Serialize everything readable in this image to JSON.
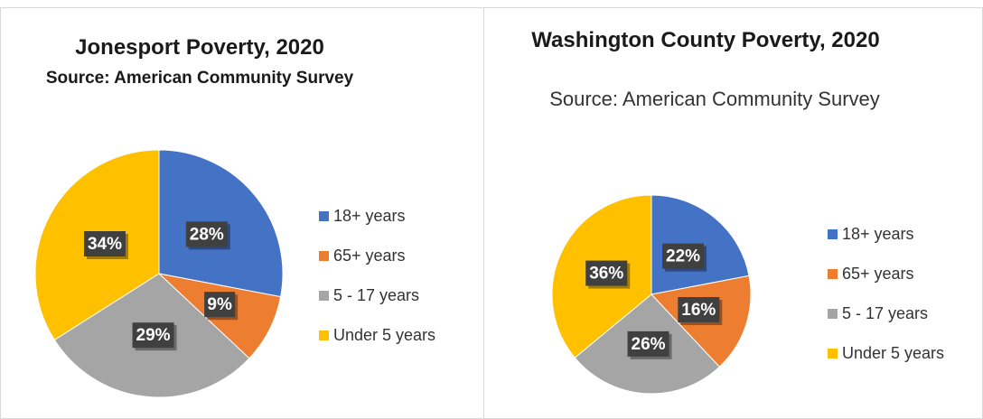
{
  "chart_data": [
    {
      "type": "pie",
      "title": "Jonesport Poverty, 2020",
      "subtitle": "Source: American Community Survey",
      "categories": [
        "18+ years",
        "65+ years",
        "5 - 17 years",
        "Under 5 years"
      ],
      "values": [
        28,
        9,
        29,
        34
      ],
      "value_labels": [
        "28%",
        "9%",
        "29%",
        "34%"
      ],
      "colors": [
        "#4472c4",
        "#ed7d31",
        "#a5a5a5",
        "#ffc000"
      ],
      "legend": "right"
    },
    {
      "type": "pie",
      "title": "Washington County Poverty, 2020",
      "subtitle": "Source: American Community Survey",
      "categories": [
        "18+ years",
        "65+ years",
        "5 - 17 years",
        "Under 5 years"
      ],
      "values": [
        22,
        16,
        26,
        36
      ],
      "value_labels": [
        "22%",
        "16%",
        "26%",
        "36%"
      ],
      "colors": [
        "#4472c4",
        "#ed7d31",
        "#a5a5a5",
        "#ffc000"
      ],
      "legend": "right"
    }
  ]
}
